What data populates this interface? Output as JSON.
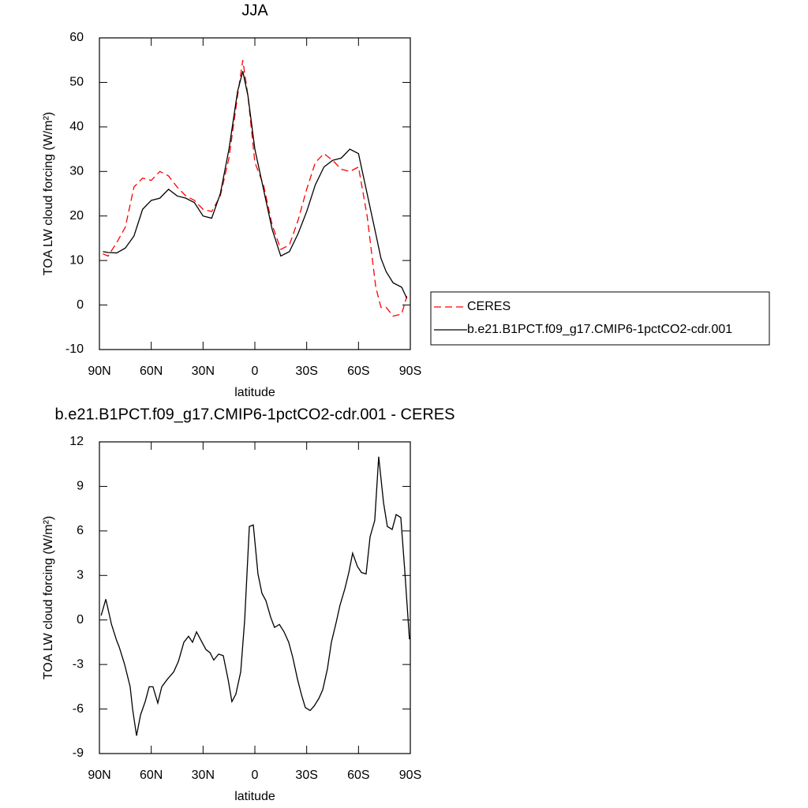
{
  "chart_data": [
    {
      "type": "line",
      "title": "JJA",
      "x_label": "latitude",
      "y_label": "TOA LW cloud forcing (W/m²)",
      "x": [
        88,
        85,
        80,
        75,
        70,
        65,
        60,
        55,
        50,
        45,
        40,
        35,
        30,
        25,
        20,
        15,
        10,
        7,
        4,
        0,
        -5,
        -10,
        -15,
        -20,
        -25,
        -30,
        -35,
        -40,
        -45,
        -50,
        -55,
        -60,
        -65,
        -70,
        -73,
        -76,
        -80,
        -85,
        -88
      ],
      "series": [
        {
          "name": "CERES",
          "color": "#ff0000",
          "dashed": true,
          "values": [
            11.5,
            11,
            14,
            17.5,
            26.5,
            28.5,
            28,
            30,
            29,
            26.5,
            24.5,
            23.5,
            21.5,
            21,
            24.5,
            33,
            47,
            55,
            47,
            32,
            27,
            18,
            12.5,
            13.5,
            19,
            26,
            32,
            34,
            32.5,
            30.5,
            30,
            31,
            20,
            4,
            -0.5,
            -0.5,
            -2.5,
            -2,
            2
          ]
        },
        {
          "name": "b.e21.B1PCT.f09_g17.CMIP6-1pctCO2-cdr.001",
          "color": "#000000",
          "dashed": false,
          "values": [
            12,
            11.8,
            11.7,
            12.8,
            15.5,
            21.5,
            23.5,
            24,
            26,
            24.5,
            24,
            23,
            20,
            19.5,
            25,
            35,
            48,
            52.5,
            47,
            35,
            26,
            17,
            11,
            12,
            16,
            21,
            27,
            31,
            32.5,
            33,
            35,
            34,
            25,
            16,
            10.5,
            7.5,
            5,
            4,
            1.5
          ]
        }
      ],
      "xlim": [
        90,
        -90
      ],
      "xticks": [
        {
          "value": 90,
          "label": "90N"
        },
        {
          "value": 60,
          "label": "60N"
        },
        {
          "value": 30,
          "label": "30N"
        },
        0,
        {
          "value": -30,
          "label": "30S"
        },
        {
          "value": -60,
          "label": "60S"
        },
        {
          "value": -90,
          "label": "90S"
        }
      ],
      "ylim": [
        -10,
        60
      ],
      "yticks": [
        -10,
        0,
        10,
        20,
        30,
        40,
        50,
        60
      ],
      "legend": "right"
    },
    {
      "type": "line",
      "title": "b.e21.B1PCT.f09_g17.CMIP6-1pctCO2-cdr.001 - CERES",
      "x_label": "latitude",
      "y_label": "TOA LW cloud forcing (W/m²)",
      "x": [
        89,
        86.3,
        83,
        80,
        78.6,
        75.4,
        72.2,
        70.8,
        68.5,
        66.2,
        63.5,
        61.2,
        59,
        56.2,
        53.9,
        50.7,
        47,
        44.3,
        41.1,
        38.4,
        36.1,
        33.8,
        31.5,
        28.3,
        26,
        23.8,
        21,
        18.3,
        15.5,
        13.3,
        11,
        8.2,
        5.9,
        3.2,
        0.9,
        -1.8,
        -4.1,
        -6.4,
        -9.1,
        -11.4,
        -14.2,
        -16.9,
        -19.6,
        -21.9,
        -24.7,
        -26.9,
        -29.2,
        -32,
        -34.3,
        -37,
        -39.3,
        -42,
        -44.3,
        -47,
        -49.3,
        -52.1,
        -54.4,
        -56.6,
        -59.4,
        -61.7,
        -64.4,
        -66.7,
        -69.4,
        -71.7,
        -74.5,
        -76.7,
        -79.5,
        -81.8,
        -84.5,
        -86.8,
        -89.5
      ],
      "values": [
        0.3,
        1.4,
        -0.3,
        -1.4,
        -1.8,
        -3,
        -4.5,
        -6,
        -7.8,
        -6.4,
        -5.5,
        -4.5,
        -4.5,
        -5.6,
        -4.5,
        -4,
        -3.5,
        -2.8,
        -1.5,
        -1.1,
        -1.5,
        -0.8,
        -1.3,
        -2,
        -2.2,
        -2.7,
        -2.3,
        -2.4,
        -4,
        -5.5,
        -5,
        -3.5,
        0,
        6.3,
        6.4,
        3.1,
        1.8,
        1.3,
        0.2,
        -0.5,
        -0.3,
        -0.8,
        -1.5,
        -2.5,
        -4,
        -5,
        -5.9,
        -6.1,
        -5.8,
        -5.3,
        -4.7,
        -3.3,
        -1.5,
        -0.2,
        1,
        2.1,
        3.2,
        4.5,
        3.6,
        3.2,
        3.1,
        5.6,
        6.7,
        11,
        7.9,
        6.3,
        6.1,
        7.1,
        6.9,
        3.3,
        -1.3
      ],
      "color": "#000000",
      "xlim": [
        90,
        -90
      ],
      "xticks": [
        {
          "value": 90,
          "label": "90N"
        },
        {
          "value": 60,
          "label": "60N"
        },
        {
          "value": 30,
          "label": "30N"
        },
        0,
        {
          "value": -30,
          "label": "30S"
        },
        {
          "value": -60,
          "label": "60S"
        },
        {
          "value": -90,
          "label": "90S"
        }
      ],
      "ylim": [
        -9,
        12
      ],
      "yticks": [
        -9,
        -6,
        -3,
        0,
        3,
        6,
        9,
        12
      ]
    }
  ]
}
